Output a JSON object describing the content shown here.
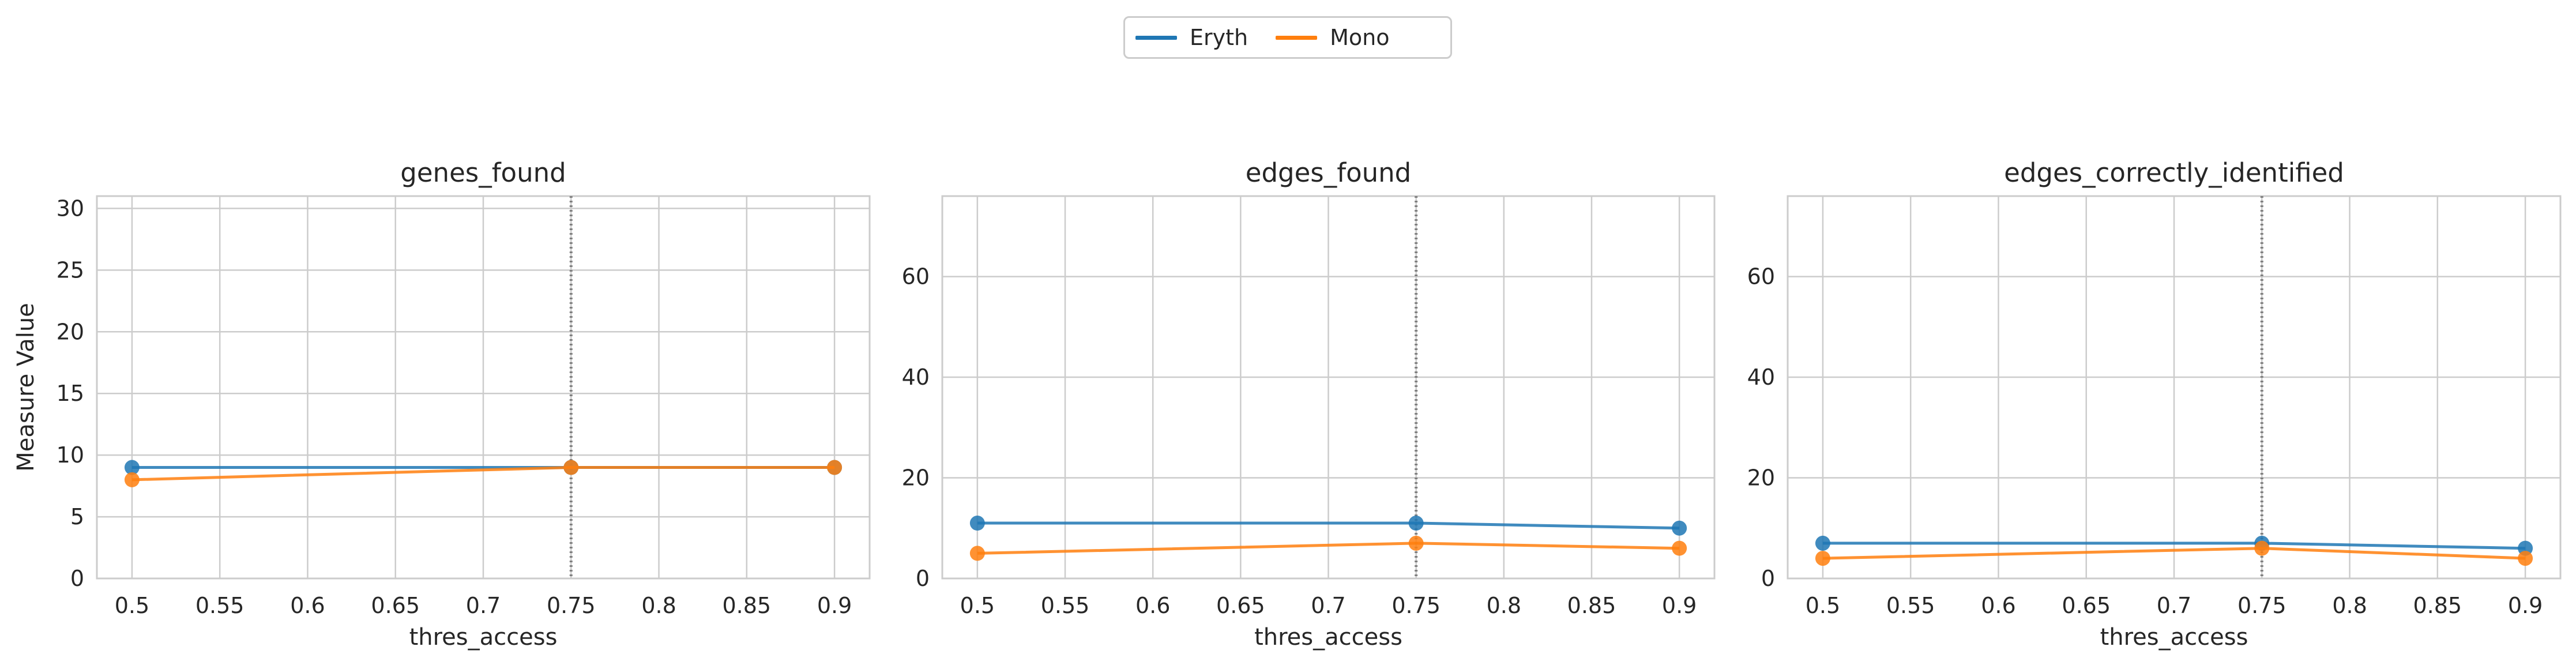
{
  "legend": [
    {
      "name": "Eryth",
      "color": "#1f77b4"
    },
    {
      "name": "Mono",
      "color": "#ff7f0e"
    }
  ],
  "chart_data": [
    {
      "type": "line",
      "title": "genes_found",
      "xlabel": "thres_access",
      "ylabel": "Measure Value",
      "x": [
        0.5,
        0.75,
        0.9
      ],
      "xticks": [
        "0.5",
        "0.55",
        "0.6",
        "0.65",
        "0.7",
        "0.75",
        "0.8",
        "0.85",
        "0.9"
      ],
      "yticks": [
        0,
        5,
        10,
        15,
        20,
        25,
        30
      ],
      "xlim": [
        0.48,
        0.92
      ],
      "ylim": [
        0,
        31
      ],
      "vline": 0.75,
      "grid": true,
      "series": [
        {
          "name": "Eryth",
          "values": [
            9,
            9,
            9
          ]
        },
        {
          "name": "Mono",
          "values": [
            8,
            9,
            9
          ]
        }
      ]
    },
    {
      "type": "line",
      "title": "edges_found",
      "xlabel": "thres_access",
      "ylabel": "",
      "x": [
        0.5,
        0.75,
        0.9
      ],
      "xticks": [
        "0.5",
        "0.55",
        "0.6",
        "0.65",
        "0.7",
        "0.75",
        "0.8",
        "0.85",
        "0.9"
      ],
      "yticks": [
        0,
        20,
        40,
        60
      ],
      "xlim": [
        0.48,
        0.92
      ],
      "ylim": [
        0,
        76
      ],
      "vline": 0.75,
      "grid": true,
      "series": [
        {
          "name": "Eryth",
          "values": [
            11,
            11,
            10
          ]
        },
        {
          "name": "Mono",
          "values": [
            5,
            7,
            6
          ]
        }
      ]
    },
    {
      "type": "line",
      "title": "edges_correctly_identified",
      "xlabel": "thres_access",
      "ylabel": "",
      "x": [
        0.5,
        0.75,
        0.9
      ],
      "xticks": [
        "0.5",
        "0.55",
        "0.6",
        "0.65",
        "0.7",
        "0.75",
        "0.8",
        "0.85",
        "0.9"
      ],
      "yticks": [
        0,
        20,
        40,
        60
      ],
      "xlim": [
        0.48,
        0.92
      ],
      "ylim": [
        0,
        76
      ],
      "vline": 0.75,
      "grid": true,
      "series": [
        {
          "name": "Eryth",
          "values": [
            7,
            7,
            6
          ]
        },
        {
          "name": "Mono",
          "values": [
            4,
            6,
            4
          ]
        }
      ]
    }
  ]
}
